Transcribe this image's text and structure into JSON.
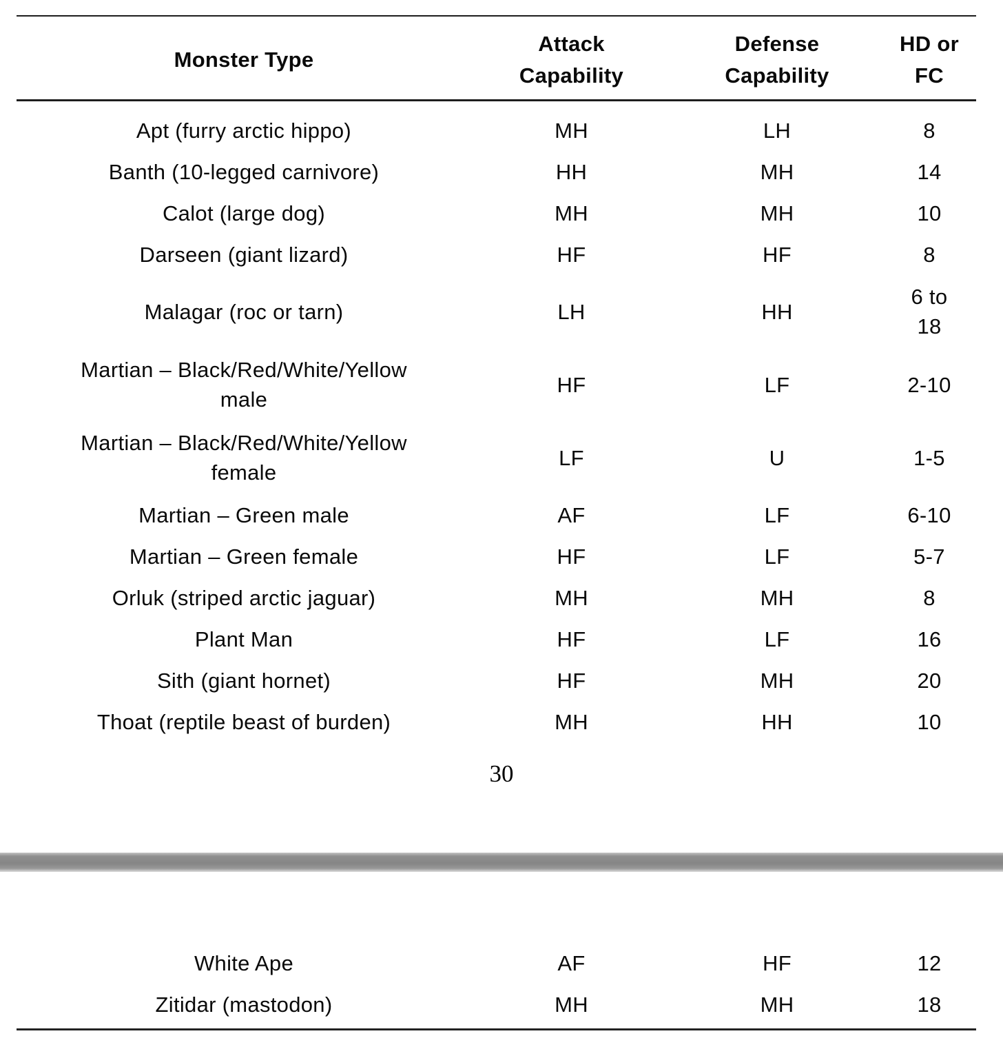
{
  "colors": {
    "rule": "#1d1d1d",
    "divider_gray": "#8c8c8c",
    "text": "#0a0a0a"
  },
  "page_number": "30",
  "table": {
    "columns": {
      "monster": "Monster Type",
      "attack": "Attack\nCapability",
      "defense": "Defense\nCapability",
      "hd": "HD or\nFC"
    },
    "rows": [
      {
        "name": "Apt (furry arctic hippo)",
        "attack": "MH",
        "defense": "LH",
        "hd": "8"
      },
      {
        "name": "Banth (10-legged carnivore)",
        "attack": "HH",
        "defense": "MH",
        "hd": "14"
      },
      {
        "name": "Calot (large dog)",
        "attack": "MH",
        "defense": "MH",
        "hd": "10"
      },
      {
        "name": "Darseen (giant lizard)",
        "attack": "HF",
        "defense": "HF",
        "hd": "8"
      },
      {
        "name": "Malagar (roc or tarn)",
        "attack": "LH",
        "defense": "HH",
        "hd": "6 to\n18"
      },
      {
        "name": "Martian – Black/Red/White/Yellow\nmale",
        "attack": "HF",
        "defense": "LF",
        "hd": "2-10"
      },
      {
        "name": "Martian – Black/Red/White/Yellow\nfemale",
        "attack": "LF",
        "defense": "U",
        "hd": "1-5"
      },
      {
        "name": "Martian – Green male",
        "attack": "AF",
        "defense": "LF",
        "hd": "6-10"
      },
      {
        "name": "Martian – Green female",
        "attack": "HF",
        "defense": "LF",
        "hd": "5-7"
      },
      {
        "name": "Orluk (striped arctic jaguar)",
        "attack": "MH",
        "defense": "MH",
        "hd": "8"
      },
      {
        "name": "Plant Man",
        "attack": "HF",
        "defense": "LF",
        "hd": "16"
      },
      {
        "name": "Sith (giant hornet)",
        "attack": "HF",
        "defense": "MH",
        "hd": "20"
      },
      {
        "name": "Thoat (reptile beast of burden)",
        "attack": "MH",
        "defense": "HH",
        "hd": "10"
      }
    ],
    "continued_rows": [
      {
        "name": "White Ape",
        "attack": "AF",
        "defense": "HF",
        "hd": "12"
      },
      {
        "name": "Zitidar (mastodon)",
        "attack": "MH",
        "defense": "MH",
        "hd": "18"
      }
    ]
  }
}
